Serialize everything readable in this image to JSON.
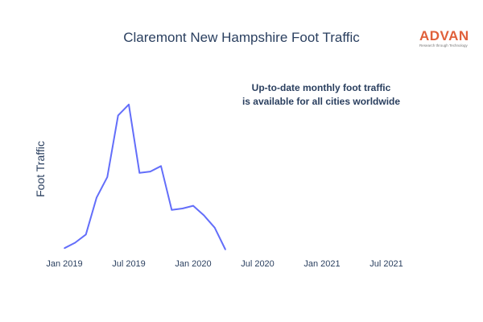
{
  "chart_data": {
    "type": "line",
    "title": "Claremont New Hampshire Foot Traffic",
    "ylabel": "Foot Traffic",
    "xlabel": "",
    "x_ticks": [
      "Jan 2019",
      "Jul 2019",
      "Jan 2020",
      "Jul 2020",
      "Jan 2021",
      "Jul 2021"
    ],
    "x_range": [
      "2019-01",
      "2021-10"
    ],
    "y_range": [
      0,
      1
    ],
    "y_ticks_visible": false,
    "grid": false,
    "series": [
      {
        "color": "#636efa",
        "points": [
          {
            "x": "2019-01",
            "y": 0.01
          },
          {
            "x": "2019-02",
            "y": 0.05
          },
          {
            "x": "2019-03",
            "y": 0.11
          },
          {
            "x": "2019-04",
            "y": 0.38
          },
          {
            "x": "2019-05",
            "y": 0.53
          },
          {
            "x": "2019-06",
            "y": 0.98
          },
          {
            "x": "2019-07",
            "y": 1.06
          },
          {
            "x": "2019-08",
            "y": 0.56
          },
          {
            "x": "2019-09",
            "y": 0.57
          },
          {
            "x": "2019-10",
            "y": 0.61
          },
          {
            "x": "2019-11",
            "y": 0.29
          },
          {
            "x": "2019-12",
            "y": 0.3
          },
          {
            "x": "2020-01",
            "y": 0.32
          },
          {
            "x": "2020-02",
            "y": 0.25
          },
          {
            "x": "2020-03",
            "y": 0.16
          },
          {
            "x": "2020-04",
            "y": 0.0
          }
        ]
      }
    ]
  },
  "annotation": {
    "line1": "Up-to-date monthly foot traffic",
    "line2": "is available for all cities worldwide"
  },
  "logo": {
    "name": "ADVAN",
    "tagline": "Research through Technology",
    "color": "#e0603a"
  }
}
